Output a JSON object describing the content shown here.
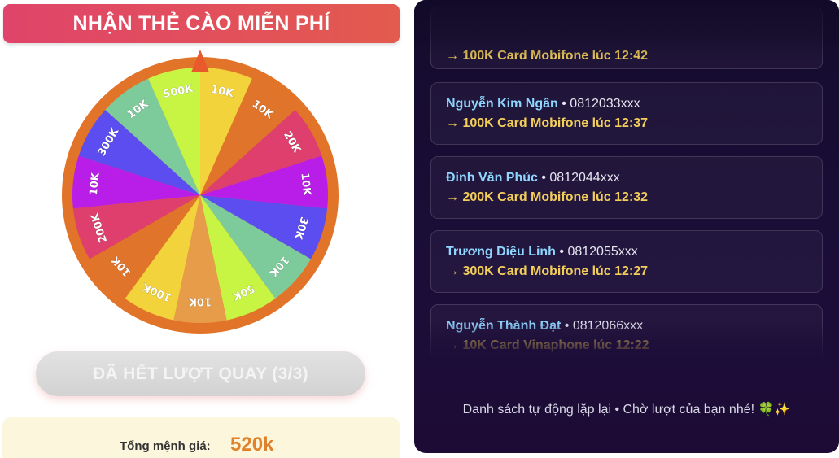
{
  "title": "NHẬN THẺ CÀO MIỄN PHÍ",
  "wheel": {
    "segments": [
      {
        "label": "10K",
        "color": "#f2d33c"
      },
      {
        "label": "10K",
        "color": "#e0742a"
      },
      {
        "label": "20K",
        "color": "#df3f6c"
      },
      {
        "label": "10K",
        "color": "#b81ee8"
      },
      {
        "label": "30K",
        "color": "#5b4df0"
      },
      {
        "label": "10K",
        "color": "#7dcb9a"
      },
      {
        "label": "50K",
        "color": "#c8f544"
      },
      {
        "label": "10K",
        "color": "#e69c48"
      },
      {
        "label": "100K",
        "color": "#f2d33c"
      },
      {
        "label": "10K",
        "color": "#e0742a"
      },
      {
        "label": "200K",
        "color": "#df3f6c"
      },
      {
        "label": "10K",
        "color": "#b81ee8"
      },
      {
        "label": "300K",
        "color": "#5b4df0"
      },
      {
        "label": "10K",
        "color": "#7dcb9a"
      },
      {
        "label": "500K",
        "color": "#c8f544"
      }
    ],
    "rim_color": "#e2742a",
    "pointer_color": "#e85a2c"
  },
  "spin_button": "ĐÃ HẾT LƯỢT QUAY (3/3)",
  "total": {
    "label": "Tổng mệnh giá:",
    "value": "520k"
  },
  "feed": [
    {
      "name": "",
      "phone": "",
      "prize": "→ 100K Card Mobifone lúc 12:42"
    },
    {
      "name": "Nguyễn Kim Ngân",
      "phone": " • 0812033xxx",
      "prize": "→ 100K Card Mobifone lúc 12:37"
    },
    {
      "name": "Đinh Văn Phúc",
      "phone": " • 0812044xxx",
      "prize": "→ 200K Card Mobifone lúc 12:32"
    },
    {
      "name": "Trương Diệu Linh",
      "phone": " • 0812055xxx",
      "prize": "→ 300K Card Mobifone lúc 12:27"
    },
    {
      "name": "Nguyễn Thành Đạt",
      "phone": " • 0812066xxx",
      "prize": "→ 10K Card Vinaphone lúc 12:22"
    }
  ],
  "footer_note": "Danh sách tự động lặp lại • Chờ lượt của bạn nhé! 🍀✨"
}
